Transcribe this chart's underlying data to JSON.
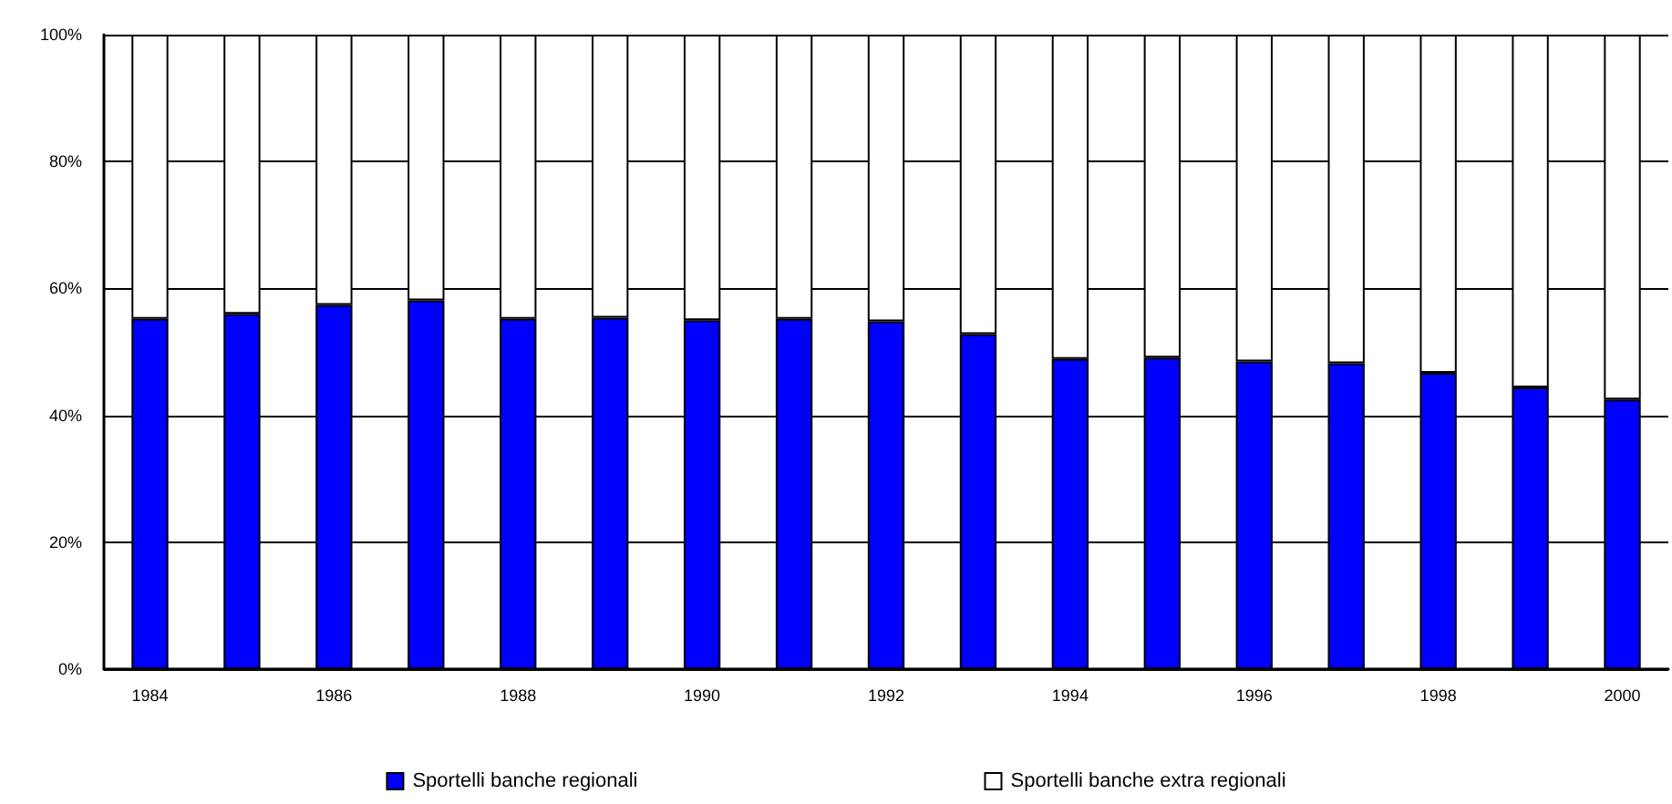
{
  "chart_data": {
    "type": "bar",
    "stacked": true,
    "grid": "y",
    "legend": "bottom",
    "categories": [
      "1984",
      null,
      "1986",
      null,
      "1988",
      null,
      "1990",
      null,
      "1992",
      null,
      "1994",
      null,
      "1996",
      null,
      "1998",
      null,
      "2000"
    ],
    "series": [
      {
        "name": "Sportelli banche regionali",
        "color": "#0000ff",
        "values": [
          55.2,
          56.0,
          57.4,
          58.1,
          55.2,
          55.4,
          55.0,
          55.2,
          54.8,
          52.8,
          48.9,
          49.1,
          48.5,
          48.2,
          46.7,
          44.4,
          42.5
        ]
      },
      {
        "name": "Sportelli banche extra regionali",
        "color": "#ffffff",
        "values": [
          44.8,
          44.0,
          42.6,
          41.9,
          44.8,
          44.6,
          45.0,
          44.8,
          45.2,
          47.2,
          51.1,
          50.9,
          51.5,
          51.8,
          53.3,
          55.6,
          57.5
        ]
      }
    ],
    "ylim": [
      0,
      100
    ],
    "yticks": [
      {
        "value": 0,
        "label": "0%"
      },
      {
        "value": 20,
        "label": "20%"
      },
      {
        "value": 40,
        "label": "40%"
      },
      {
        "value": 60,
        "label": "60%"
      },
      {
        "value": 80,
        "label": "80%"
      },
      {
        "value": 100,
        "label": "100%"
      }
    ]
  }
}
